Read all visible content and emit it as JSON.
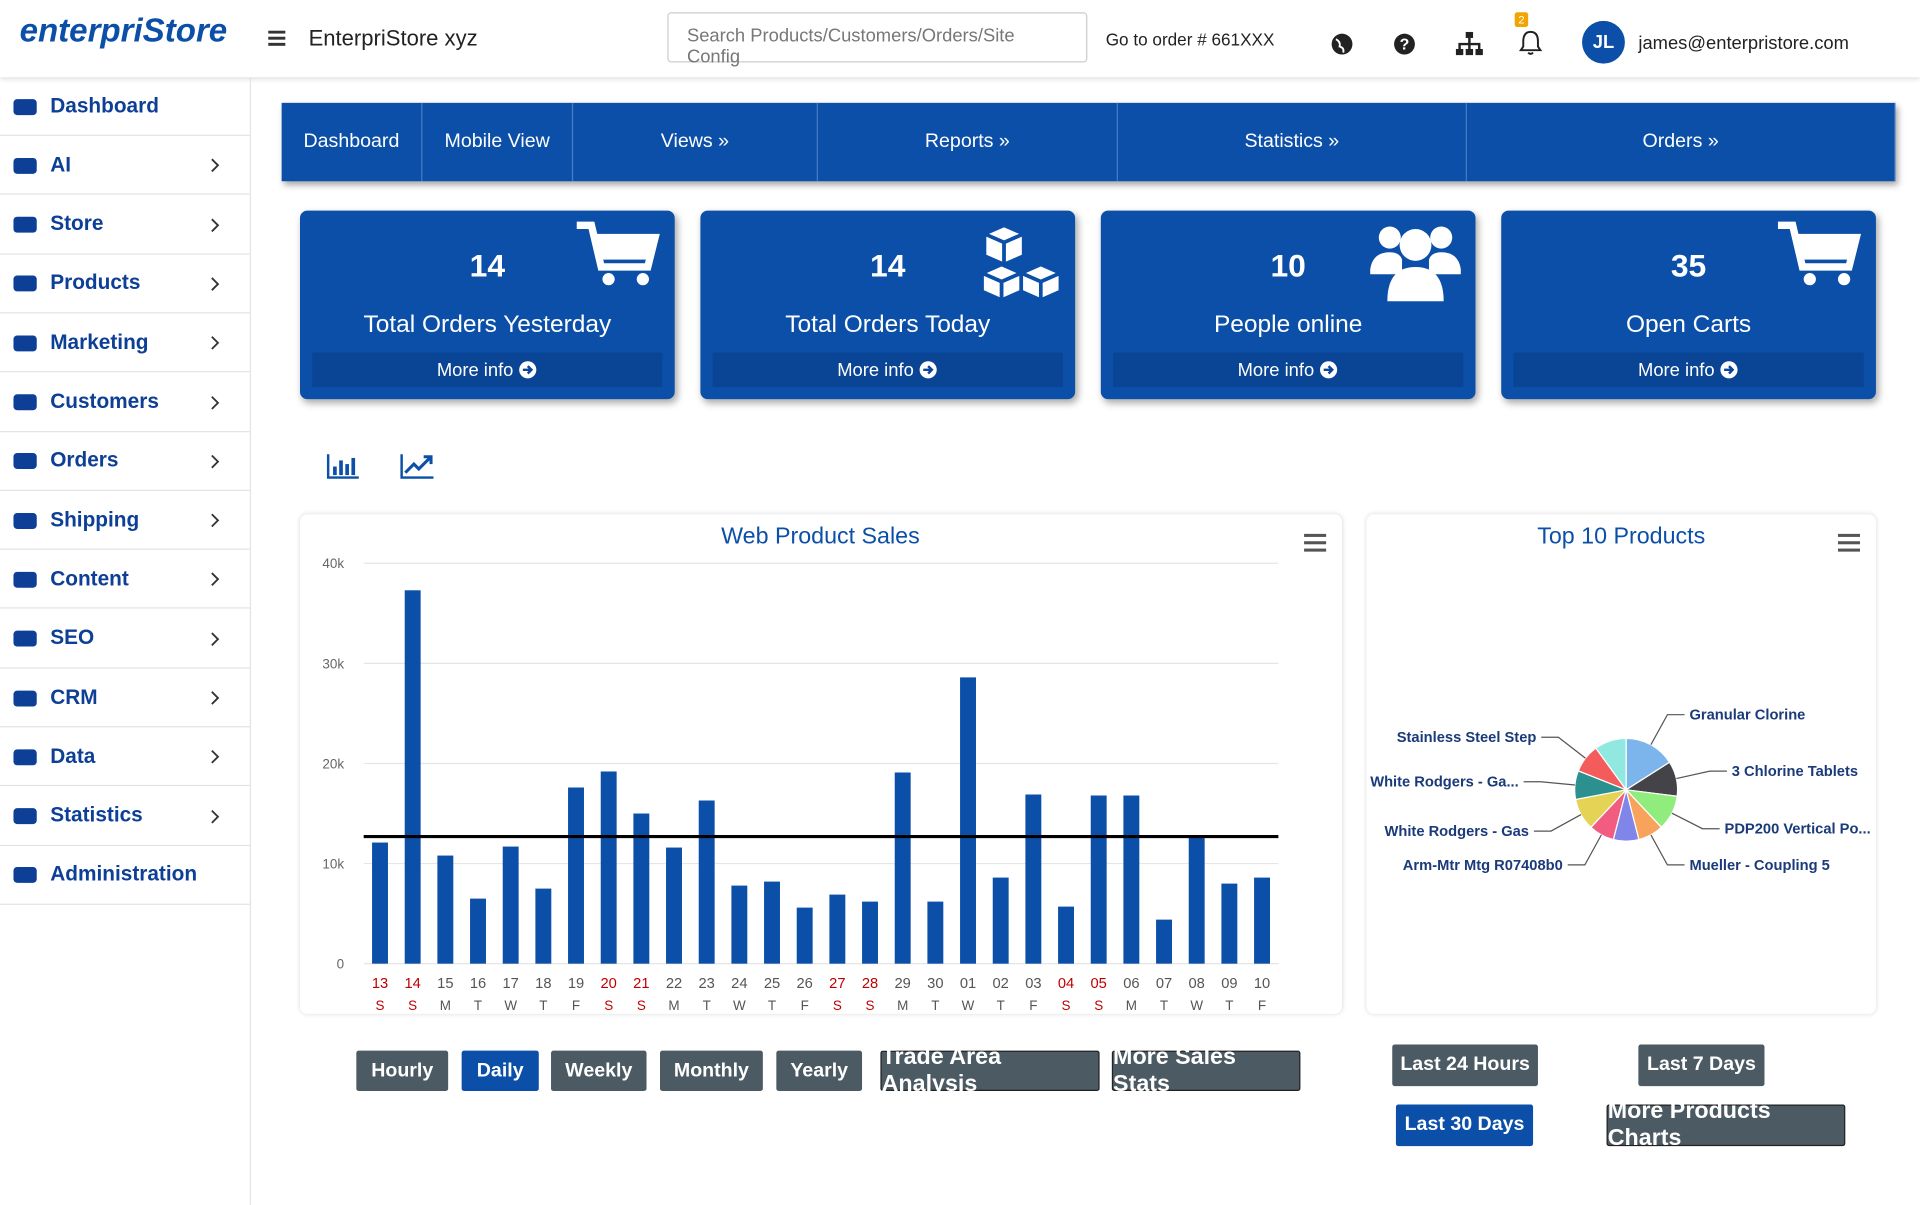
{
  "header": {
    "logo": "enterpriStore",
    "store_name": "EnterpriStore xyz",
    "search_placeholder": "Search Products/Customers/Orders/Site Config",
    "goto_order": "Go to order # 661XXX",
    "notification_count": 2,
    "avatar": "JL",
    "email": "james@enterpristore.com"
  },
  "sidebar": [
    "Dashboard",
    "AI",
    "Store",
    "Products",
    "Marketing",
    "Customers",
    "Orders",
    "Shipping",
    "Content",
    "SEO",
    "CRM",
    "Data",
    "Statistics",
    "Administration"
  ],
  "nav": [
    "Dashboard",
    "Mobile View",
    "Views »",
    "Reports »",
    "Statistics »",
    "Orders »"
  ],
  "cards": [
    {
      "value": 14,
      "label": "Total Orders Yesterday",
      "link": "More info"
    },
    {
      "value": 14,
      "label": "Total Orders Today",
      "link": "More info"
    },
    {
      "value": 10,
      "label": "People online",
      "link": "More info"
    },
    {
      "value": 35,
      "label": "Open Carts",
      "link": "More info"
    }
  ],
  "chart_data": [
    {
      "type": "bar",
      "title": "Web Product Sales",
      "color": "#0b4fa8",
      "categories": [
        "13",
        "14",
        "15",
        "16",
        "17",
        "18",
        "19",
        "20",
        "21",
        "22",
        "23",
        "24",
        "25",
        "26",
        "27",
        "28",
        "29",
        "30",
        "01",
        "02",
        "03",
        "04",
        "05",
        "06",
        "07",
        "08",
        "09",
        "10"
      ],
      "weekdays": [
        "S",
        "S",
        "M",
        "T",
        "W",
        "T",
        "F",
        "S",
        "S",
        "M",
        "T",
        "W",
        "T",
        "F",
        "S",
        "S",
        "M",
        "T",
        "W",
        "T",
        "F",
        "S",
        "S",
        "M",
        "T",
        "W",
        "T",
        "F"
      ],
      "weekend": [
        0,
        1,
        7,
        8,
        14,
        15,
        21,
        22
      ],
      "weekend_color": "#c00000",
      "values": [
        12100,
        37300,
        10800,
        6500,
        11700,
        7500,
        17600,
        19200,
        15000,
        11600,
        16300,
        7800,
        8200,
        5600,
        6900,
        6200,
        19100,
        6200,
        28600,
        8600,
        16900,
        5700,
        16800,
        16800,
        4400,
        12700,
        8000,
        8600
      ],
      "plot_line": 12700,
      "ylim": [
        0,
        40000
      ],
      "yticks": [
        0,
        {
          "value": 10000,
          "label": "10k"
        },
        {
          "value": 20000,
          "label": "20k"
        },
        {
          "value": 30000,
          "label": "30k"
        },
        {
          "value": 40000,
          "label": "40k"
        }
      ],
      "grid": true
    },
    {
      "type": "pie",
      "title": "Top 10 Products",
      "series": [
        {
          "name": "Granular Clorine",
          "color": "#7cb5ec",
          "value": 16
        },
        {
          "name": "3 Chlorine Tablets",
          "color": "#434348",
          "value": 11
        },
        {
          "name": "PDP200 Vertical Po...",
          "color": "#90ed7d",
          "value": 11
        },
        {
          "name": "Mueller - Coupling 5",
          "color": "#f7a35c",
          "value": 8
        },
        {
          "name": null,
          "color": "#8085e9",
          "value": 8
        },
        {
          "name": "Arm-Mtr Mtg R07408b0",
          "color": "#f15c80",
          "value": 8
        },
        {
          "name": "White Rodgers - Gas",
          "color": "#e4d354",
          "value": 10
        },
        {
          "name": "White Rodgers - Ga...",
          "color": "#2b908f",
          "value": 9
        },
        {
          "name": "Stainless Steel Step",
          "color": "#f45b5b",
          "value": 9
        },
        {
          "name": null,
          "color": "#91e8e1",
          "value": 10
        }
      ]
    }
  ],
  "sales_buttons": [
    "Hourly",
    "Daily",
    "Weekly",
    "Monthly",
    "Yearly",
    "Trade Area Analysis",
    "More Sales Stats"
  ],
  "active_sales_button": 1,
  "product_buttons": [
    "Last 24 Hours",
    "Last 7 Days",
    "Last 30 Days",
    "More Products Charts"
  ],
  "active_product_button": 2
}
